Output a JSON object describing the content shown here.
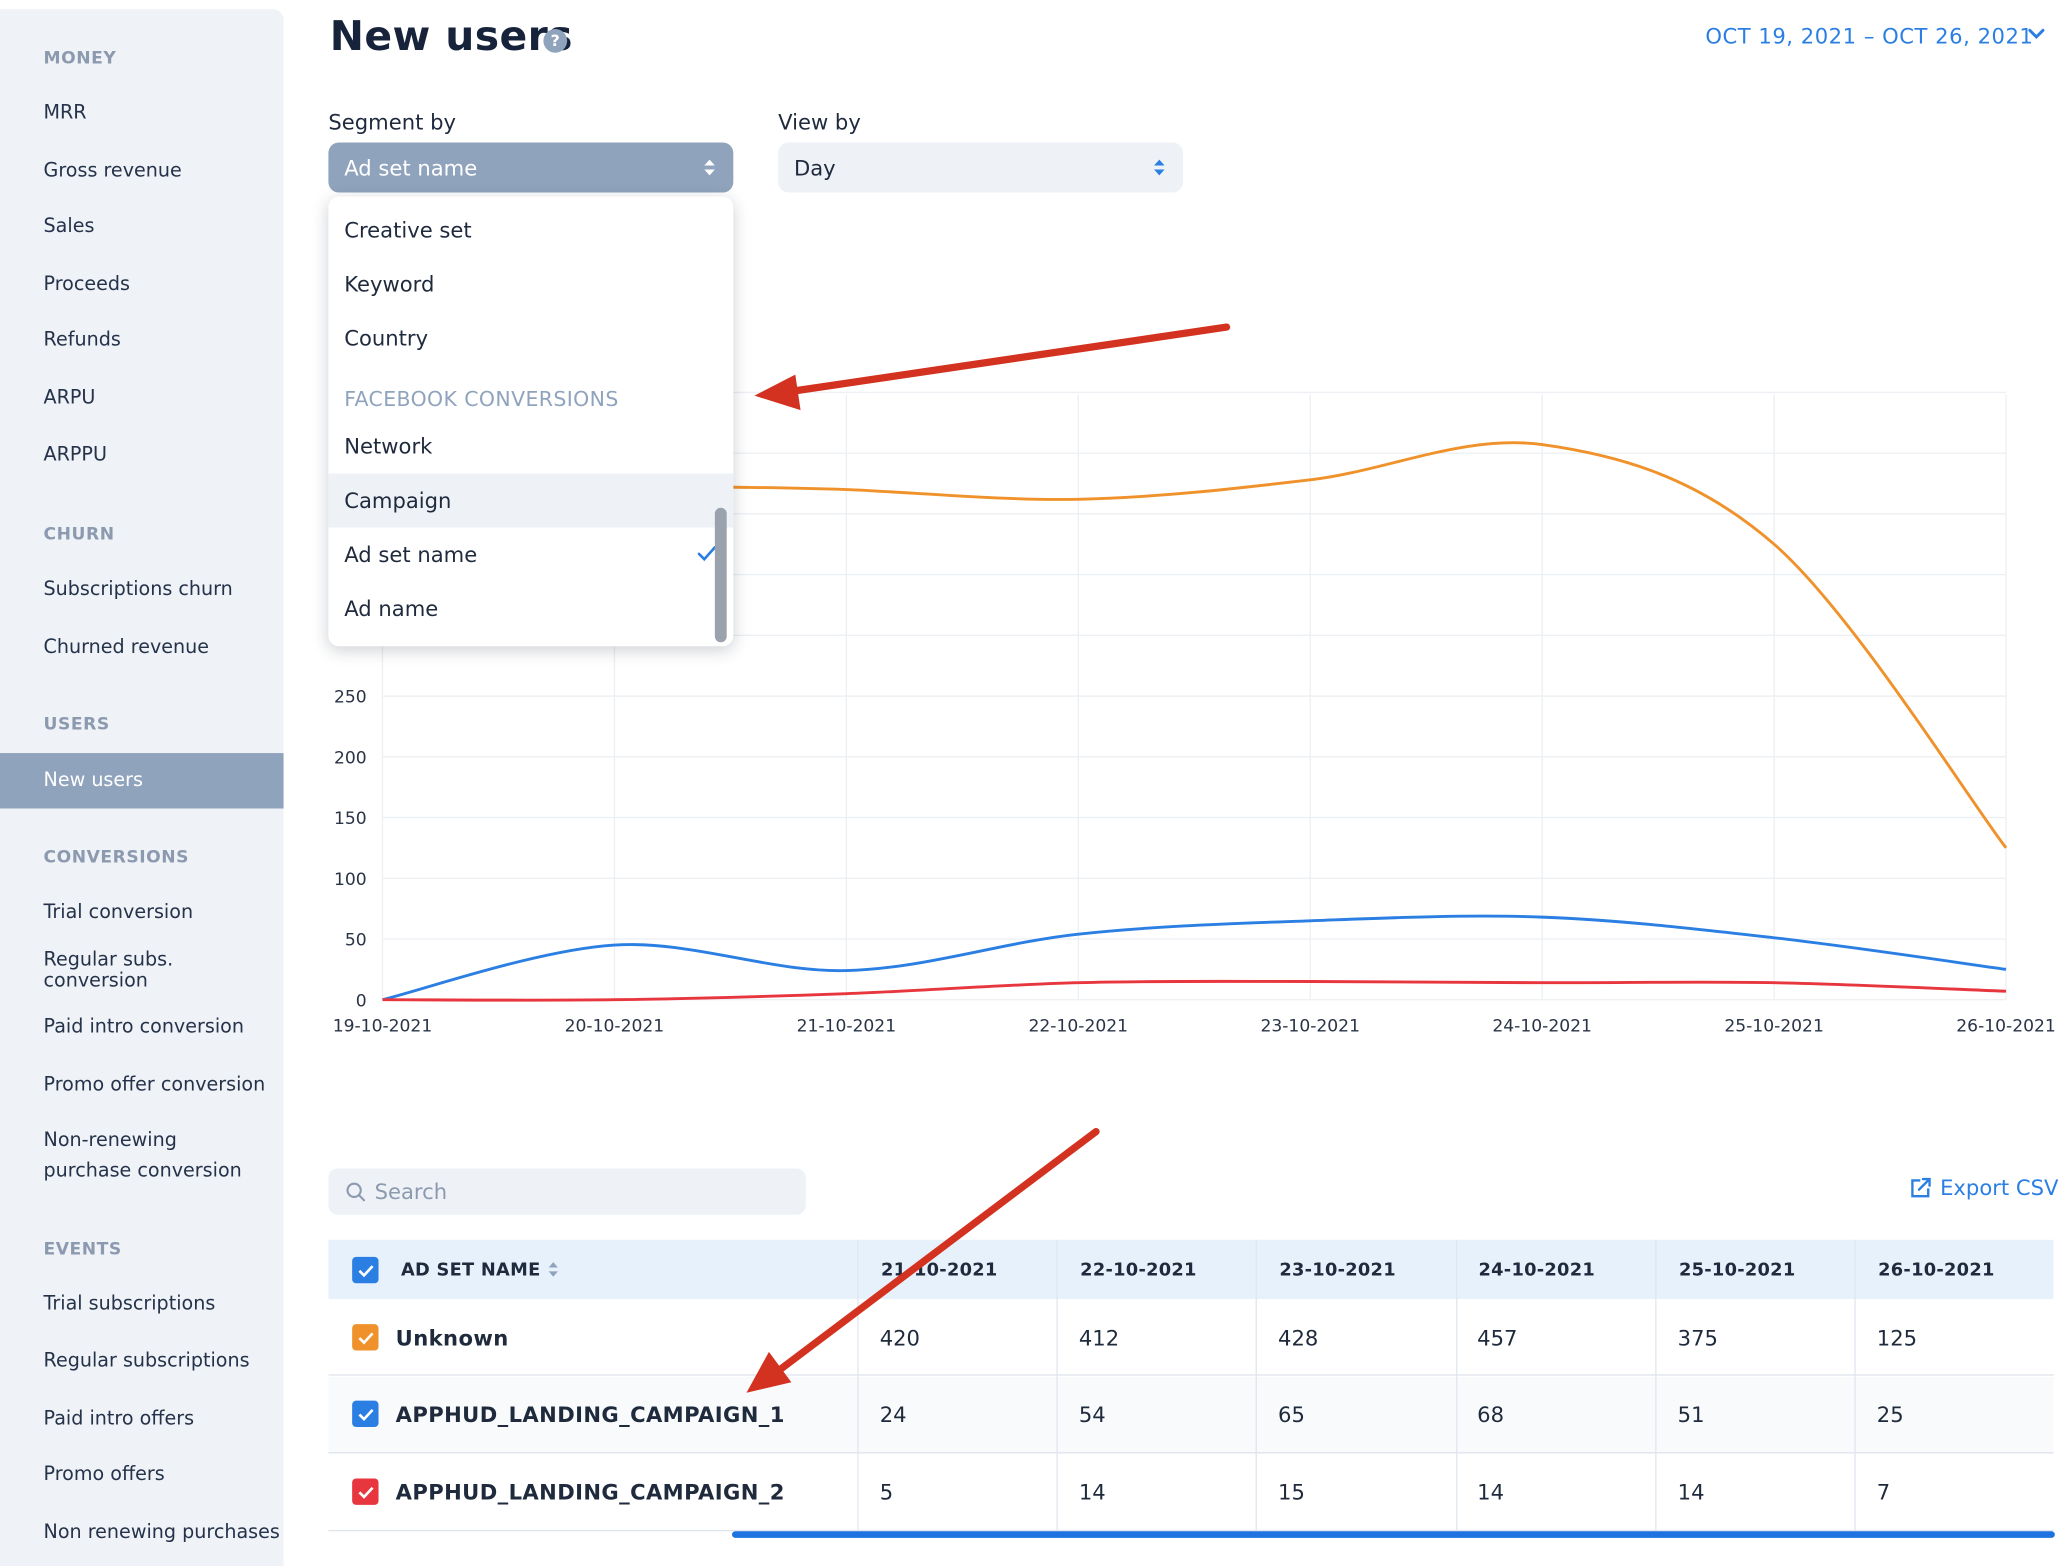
{
  "sidebar": {
    "sections": [
      {
        "title": "MONEY",
        "items": [
          "MRR",
          "Gross revenue",
          "Sales",
          "Proceeds",
          "Refunds",
          "ARPU",
          "ARPPU"
        ]
      },
      {
        "title": "CHURN",
        "items": [
          "Subscriptions churn",
          "Churned revenue"
        ]
      },
      {
        "title": "USERS",
        "items": [
          "New users"
        ]
      },
      {
        "title": "CONVERSIONS",
        "items": [
          "Trial conversion",
          "Regular subs. conversion",
          "Paid intro conversion",
          "Promo offer conversion",
          "Non-renewing purchase conversion"
        ]
      },
      {
        "title": "EVENTS",
        "items": [
          "Trial subscriptions",
          "Regular subscriptions",
          "Paid intro offers",
          "Promo offers",
          "Non renewing purchases"
        ]
      }
    ],
    "active_item": "New users"
  },
  "header": {
    "title": "New users",
    "help_symbol": "?",
    "date_range": "OCT 19, 2021  –  OCT 26, 2021"
  },
  "controls": {
    "segment_label": "Segment by",
    "segment_value": "Ad set name",
    "view_label": "View by",
    "view_value": "Day"
  },
  "dropdown": {
    "items_before_group": [
      "Creative set",
      "Keyword",
      "Country"
    ],
    "group_title": "FACEBOOK CONVERSIONS",
    "group_items": [
      "Network",
      "Campaign",
      "Ad set name",
      "Ad name"
    ],
    "hovered": "Campaign",
    "selected": "Ad set name"
  },
  "chart_data": {
    "type": "line",
    "x": [
      "19-10-2021",
      "20-10-2021",
      "21-10-2021",
      "22-10-2021",
      "23-10-2021",
      "24-10-2021",
      "25-10-2021",
      "26-10-2021"
    ],
    "y_ticks": [
      0,
      50,
      100,
      150,
      200,
      250
    ],
    "series": [
      {
        "name": "Unknown",
        "color": "#f0922b",
        "values": [
          null,
          null,
          420,
          412,
          428,
          457,
          375,
          125
        ]
      },
      {
        "name": "APPHUD_LANDING_CAMPAIGN_1",
        "color": "#2b7fe3",
        "values": [
          0,
          45,
          24,
          54,
          65,
          68,
          51,
          25
        ]
      },
      {
        "name": "APPHUD_LANDING_CAMPAIGN_2",
        "color": "#e8363f",
        "values": [
          0,
          0,
          5,
          14,
          15,
          14,
          14,
          7
        ]
      }
    ],
    "ylim": [
      0,
      500
    ],
    "grid": true
  },
  "table_tools": {
    "search_placeholder": "Search",
    "export_label": "Export CSV"
  },
  "table": {
    "name_header": "AD SET NAME",
    "date_headers": [
      "21-10-2021",
      "22-10-2021",
      "23-10-2021",
      "24-10-2021",
      "25-10-2021",
      "26-10-2021"
    ],
    "rows": [
      {
        "name": "Unknown",
        "color": "#f0922b",
        "values": [
          "420",
          "412",
          "428",
          "457",
          "375",
          "125"
        ]
      },
      {
        "name": "APPHUD_LANDING_CAMPAIGN_1",
        "color": "#2b7fe3",
        "values": [
          "24",
          "54",
          "65",
          "68",
          "51",
          "25"
        ]
      },
      {
        "name": "APPHUD_LANDING_CAMPAIGN_2",
        "color": "#e8363f",
        "values": [
          "5",
          "14",
          "15",
          "14",
          "14",
          "7"
        ]
      }
    ]
  },
  "colors": {
    "accent": "#2b7fe3",
    "sidebar_active": "#8fa3bc",
    "annotation_arrow": "#d2321f"
  }
}
